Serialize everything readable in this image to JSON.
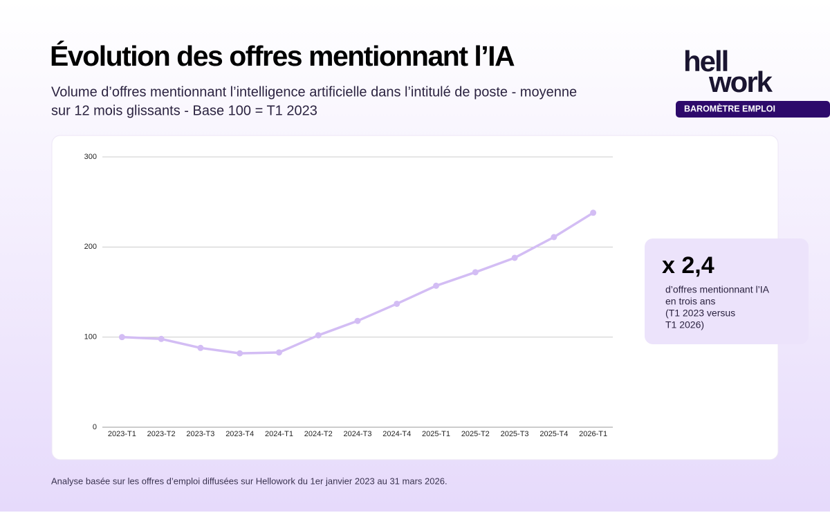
{
  "chart_data": {
    "type": "line",
    "title": "Évolution des  offres mentionnant l’IA",
    "subtitle": [
      "Volume d’offres mentionnant l’intelligence artificielle dans l’intitulé de poste - moyenne",
      "sur 12 mois glissants - Base 100 = T1 2023"
    ],
    "categories": [
      "2023-T1",
      "2023-T2",
      "2023-T3",
      "2023-T4",
      "2024-T1",
      "2024-T2",
      "2024-T3",
      "2024-T4",
      "2025-T1",
      "2025-T2",
      "2025-T3",
      "2025-T4",
      "2026-T1"
    ],
    "series": [
      {
        "name": null,
        "color": "#d3bdf4",
        "values": [
          100,
          98,
          88,
          82,
          83,
          102,
          118,
          137,
          157,
          172,
          188,
          211,
          238
        ]
      }
    ],
    "ylim": [
      0,
      300
    ],
    "yticks": [
      0,
      100,
      200,
      300
    ],
    "grid": true
  },
  "logo": [
    "hell",
    "work"
  ],
  "badge": "BAROMÈTRE EMPLOI",
  "callout": {
    "value": "x 2,4",
    "text": [
      "d’offres mentionnant l’IA",
      "en trois ans",
      "(T1 2023 versus",
      "T1 2026)"
    ]
  },
  "footnote": "Analyse basée sur les offres d’emploi diffusées sur Hellowork du 1er janvier 2023 au 31 mars 2026."
}
